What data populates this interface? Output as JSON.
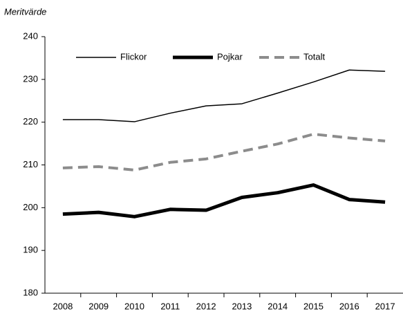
{
  "chart_data": {
    "type": "line",
    "y_label": "Meritvärde",
    "categories": [
      "2008",
      "2009",
      "2010",
      "2011",
      "2012",
      "2013",
      "2014",
      "2015",
      "2016",
      "2017"
    ],
    "series": [
      {
        "name": "Flickor",
        "color": "#000000",
        "values": [
          220.6,
          220.6,
          220.1,
          222.1,
          223.8,
          224.3,
          226.8,
          229.4,
          232.2,
          231.9
        ]
      },
      {
        "name": "Pojkar",
        "color": "#000000",
        "values": [
          198.5,
          198.9,
          197.9,
          199.6,
          199.4,
          202.4,
          203.5,
          205.3,
          201.9,
          201.3
        ]
      },
      {
        "name": "Totalt",
        "color": "#8c8c8c",
        "values": [
          209.3,
          209.6,
          208.8,
          210.6,
          211.4,
          213.2,
          214.9,
          217.2,
          216.3,
          215.6
        ]
      }
    ],
    "ylim": [
      180,
      240
    ],
    "yticks": [
      180,
      190,
      200,
      210,
      220,
      230,
      240
    ],
    "grid": false,
    "legend": "top"
  }
}
